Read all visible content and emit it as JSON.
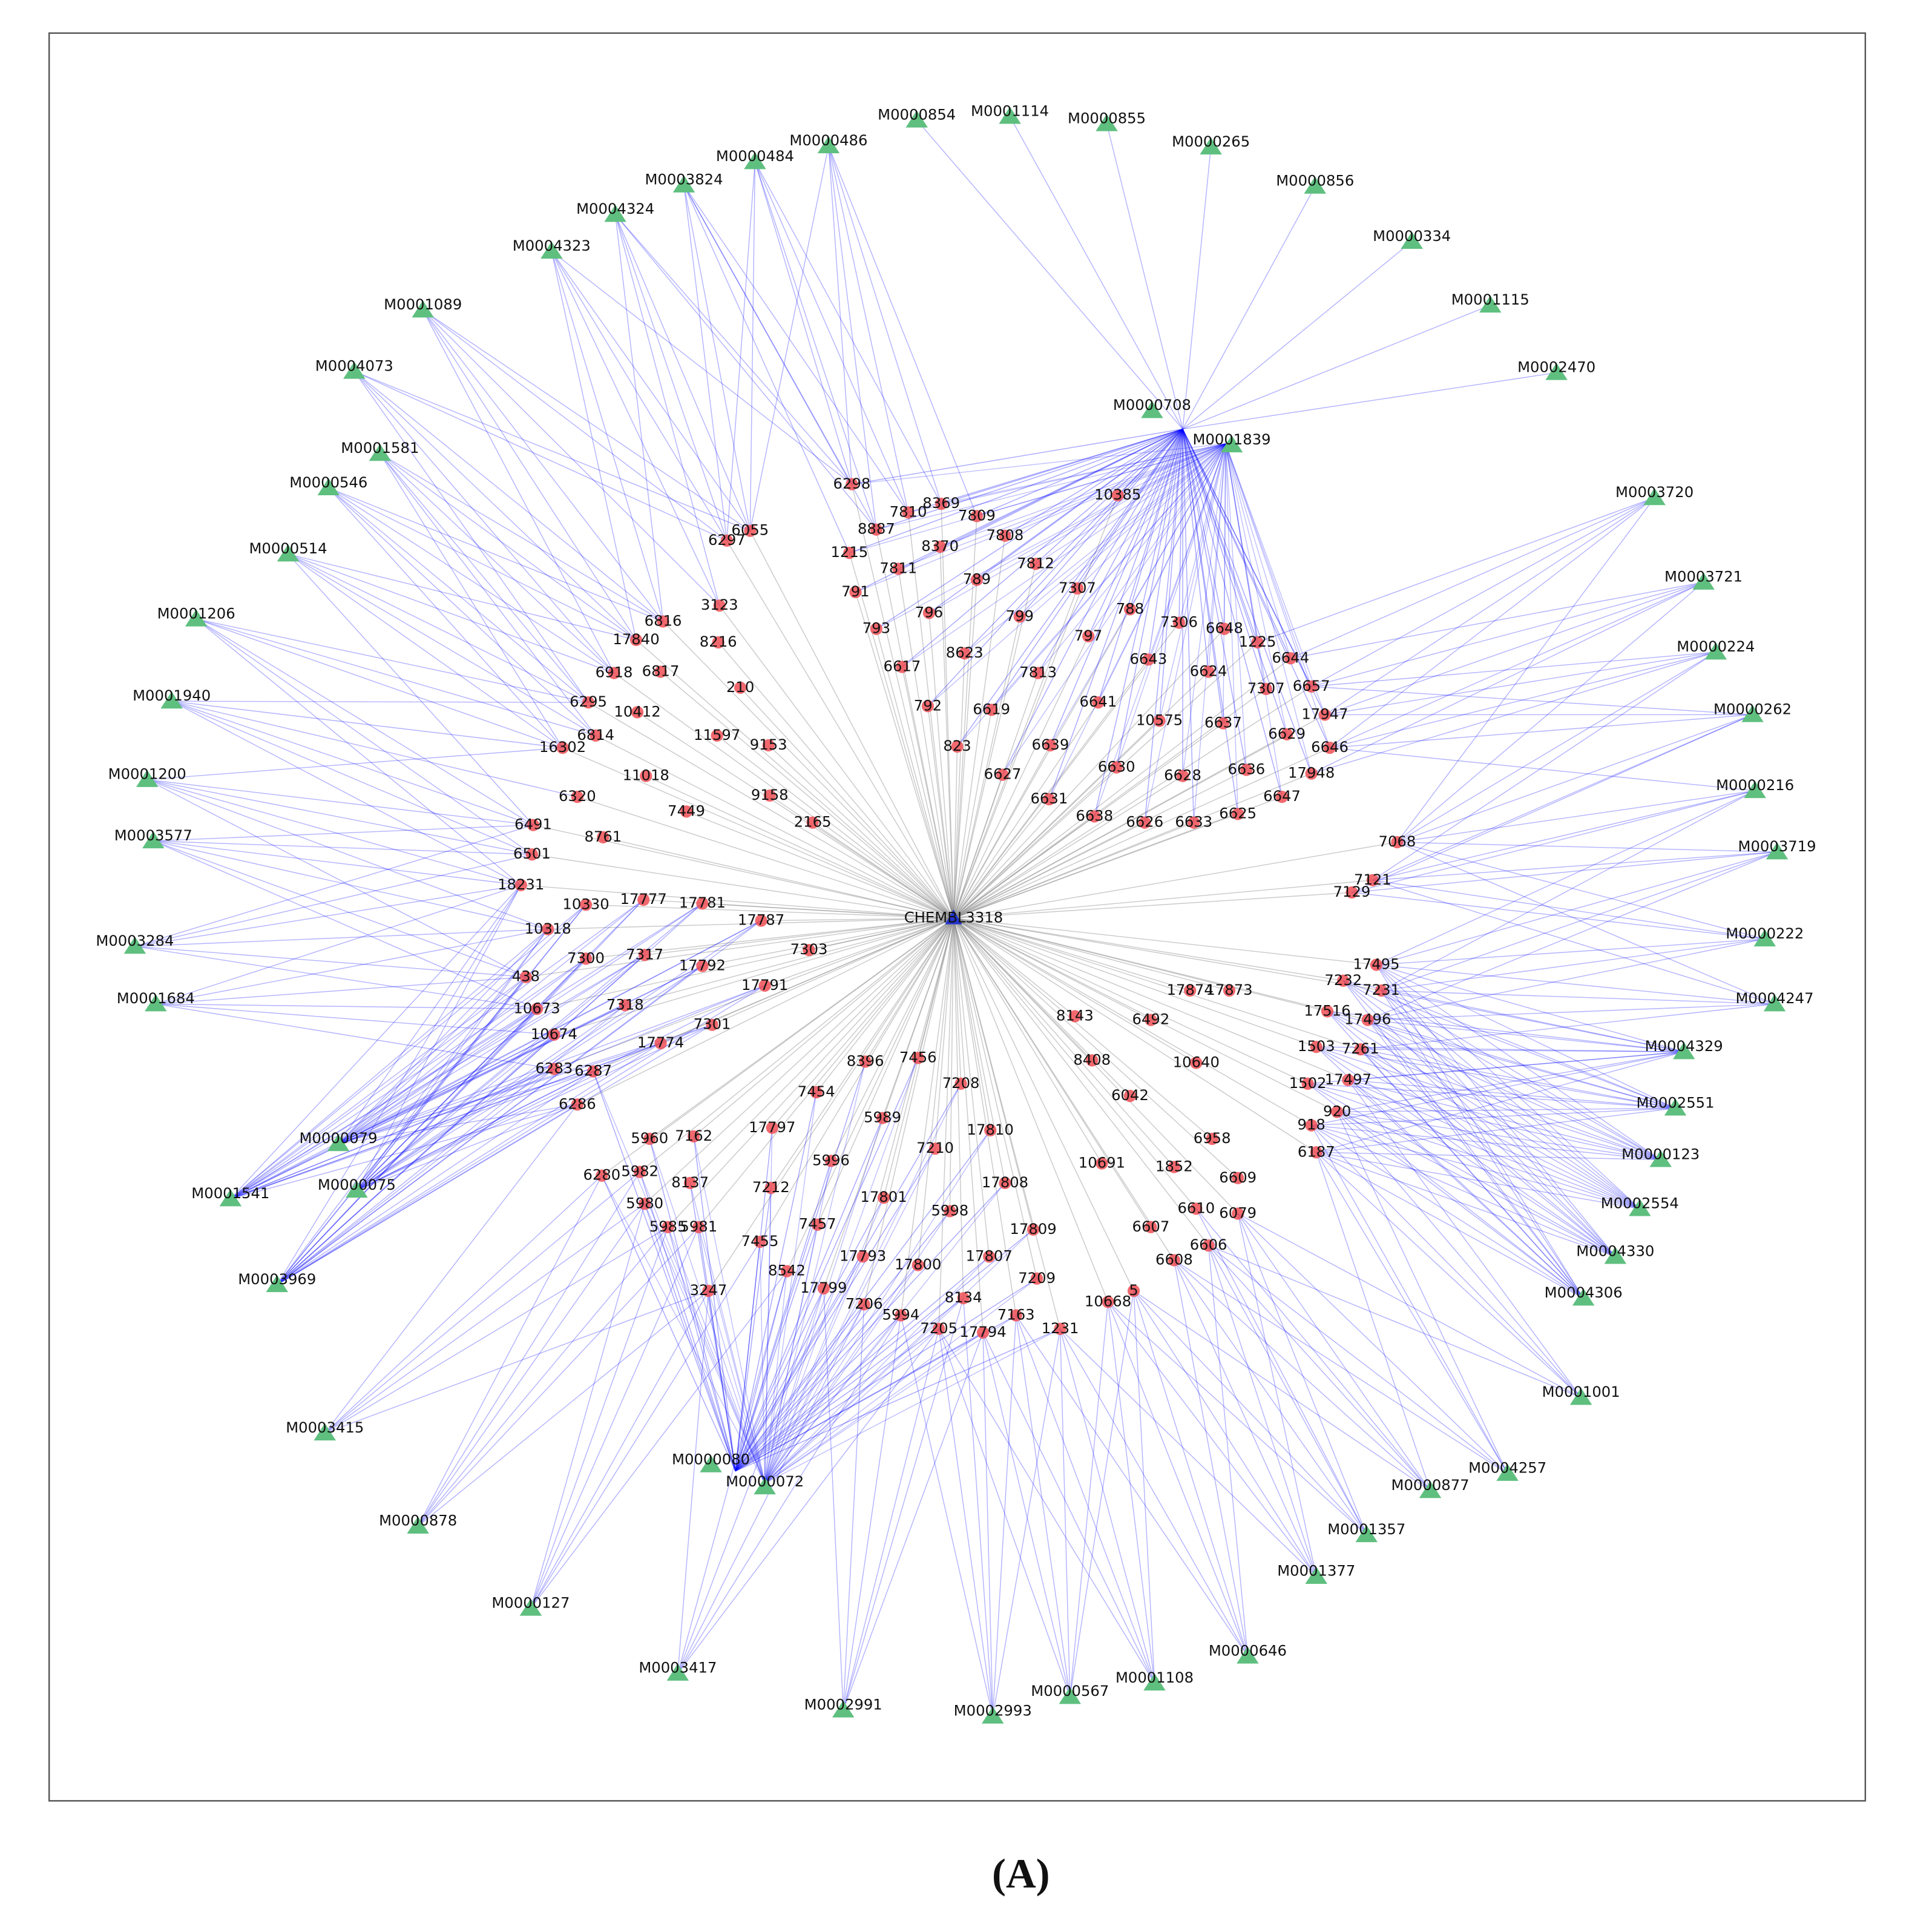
{
  "hub": "CHEMBL3318",
  "caption": "(A)",
  "targets": [
    "M0000854",
    "M0001114",
    "M0000855",
    "M0000486",
    "M0000484",
    "M0000265",
    "M0003824",
    "M0000856",
    "M0004324",
    "M0004323",
    "M0000334",
    "M0001089",
    "M0001115",
    "M0004073",
    "M0002470",
    "M0001581",
    "M0000546",
    "M0003720",
    "M0000514",
    "M0003721",
    "M0001206",
    "M0000224",
    "M0001940",
    "M0000262",
    "M0001200",
    "M0000216",
    "M0003577",
    "M0003719",
    "M0003284",
    "M0000222",
    "M0001684",
    "M0004247",
    "M0004329",
    "M0002551",
    "M0000079",
    "M0000123",
    "M0001541",
    "M0000075",
    "M0002554",
    "M0004330",
    "M0003969",
    "M0004306",
    "M0001001",
    "M0003415",
    "M0004257",
    "M0000080",
    "M0000072",
    "M0000877",
    "M0000878",
    "M0001357",
    "M0001377",
    "M0000127",
    "M0000646",
    "M0003417",
    "M0001108",
    "M0000567",
    "M0002991",
    "M0002993",
    "M0001839",
    "M0000708"
  ],
  "compounds": [
    "6298",
    "8369",
    "7810",
    "7809",
    "8887",
    "10385",
    "6055",
    "6297",
    "7808",
    "8370",
    "1215",
    "7811",
    "7812",
    "789",
    "7307",
    "791",
    "3123",
    "796",
    "799",
    "788",
    "793",
    "6816",
    "7306",
    "6648",
    "1225",
    "17840",
    "8216",
    "797",
    "8623",
    "6644",
    "6643",
    "6617",
    "6624",
    "6918",
    "6817",
    "7813",
    "7307",
    "6657",
    "210",
    "792",
    "6641",
    "6295",
    "10412",
    "6619",
    "17947",
    "10575",
    "6637",
    "11597",
    "6814",
    "6629",
    "16302",
    "9153",
    "823",
    "6639",
    "6646",
    "6630",
    "11018",
    "6627",
    "6628",
    "6636",
    "17948",
    "6320",
    "9158",
    "6631",
    "6647",
    "7449",
    "6638",
    "6626",
    "6633",
    "6625",
    "2165",
    "6491",
    "8761",
    "6501",
    "7068",
    "18231",
    "7121",
    "7129",
    "10330",
    "17777",
    "17781",
    "17787",
    "10318",
    "17495",
    "7300",
    "7317",
    "7303",
    "17792",
    "7232",
    "438",
    "17873",
    "17874",
    "7231",
    "17791",
    "10673",
    "7318",
    "17516",
    "17496",
    "8143",
    "6492",
    "7301",
    "10674",
    "17774",
    "1503",
    "7261",
    "8396",
    "7456",
    "8408",
    "10640",
    "6283",
    "6287",
    "7208",
    "1502",
    "17497",
    "7454",
    "6042",
    "6286",
    "920",
    "5989",
    "918",
    "17797",
    "17810",
    "5960",
    "7162",
    "6958",
    "6187",
    "7210",
    "5996",
    "10691",
    "1852",
    "6280",
    "5982",
    "8137",
    "6609",
    "7212",
    "17808",
    "17801",
    "5980",
    "6610",
    "6079",
    "5998",
    "7457",
    "5985",
    "5981",
    "6607",
    "17809",
    "6606",
    "7455",
    "17793",
    "17807",
    "6608",
    "8542",
    "17800",
    "17799",
    "7209",
    "3247",
    "8134",
    "5",
    "10668",
    "7206",
    "5994",
    "7163",
    "7205",
    "17794",
    "1231"
  ]
}
